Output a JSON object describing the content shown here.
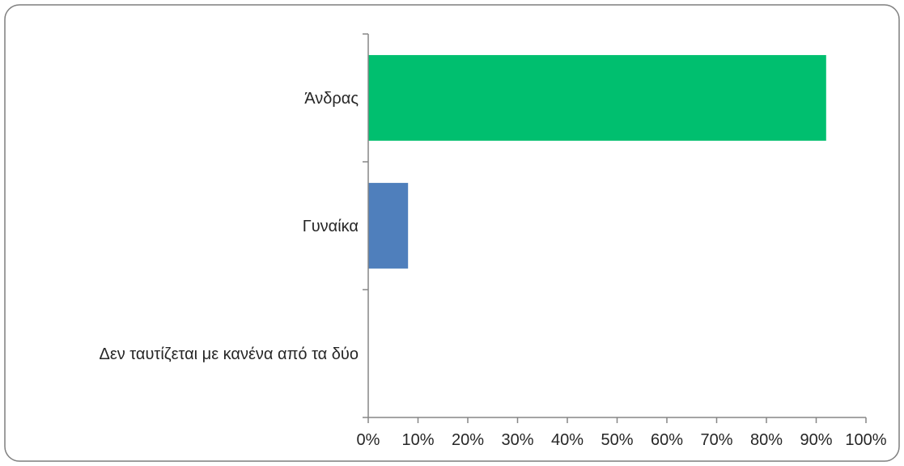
{
  "chart_data": {
    "type": "bar",
    "orientation": "horizontal",
    "title": "",
    "xlabel": "",
    "ylabel": "",
    "categories": [
      "Άνδρας",
      "Γυναίκα",
      "Δεν ταυτίζεται με κανένα από τα δύο"
    ],
    "values": [
      0.92,
      0.08,
      0.0
    ],
    "colors": [
      "#00bf6f",
      "#4f7fbc",
      "#4f7fbc"
    ],
    "xlim": [
      0,
      1
    ],
    "x_ticks": [
      0,
      0.1,
      0.2,
      0.3,
      0.4,
      0.5,
      0.6,
      0.7,
      0.8,
      0.9,
      1.0
    ],
    "x_tick_labels": [
      "0%",
      "10%",
      "20%",
      "30%",
      "40%",
      "50%",
      "60%",
      "70%",
      "80%",
      "90%",
      "100%"
    ],
    "grid": false,
    "legend": "none"
  }
}
